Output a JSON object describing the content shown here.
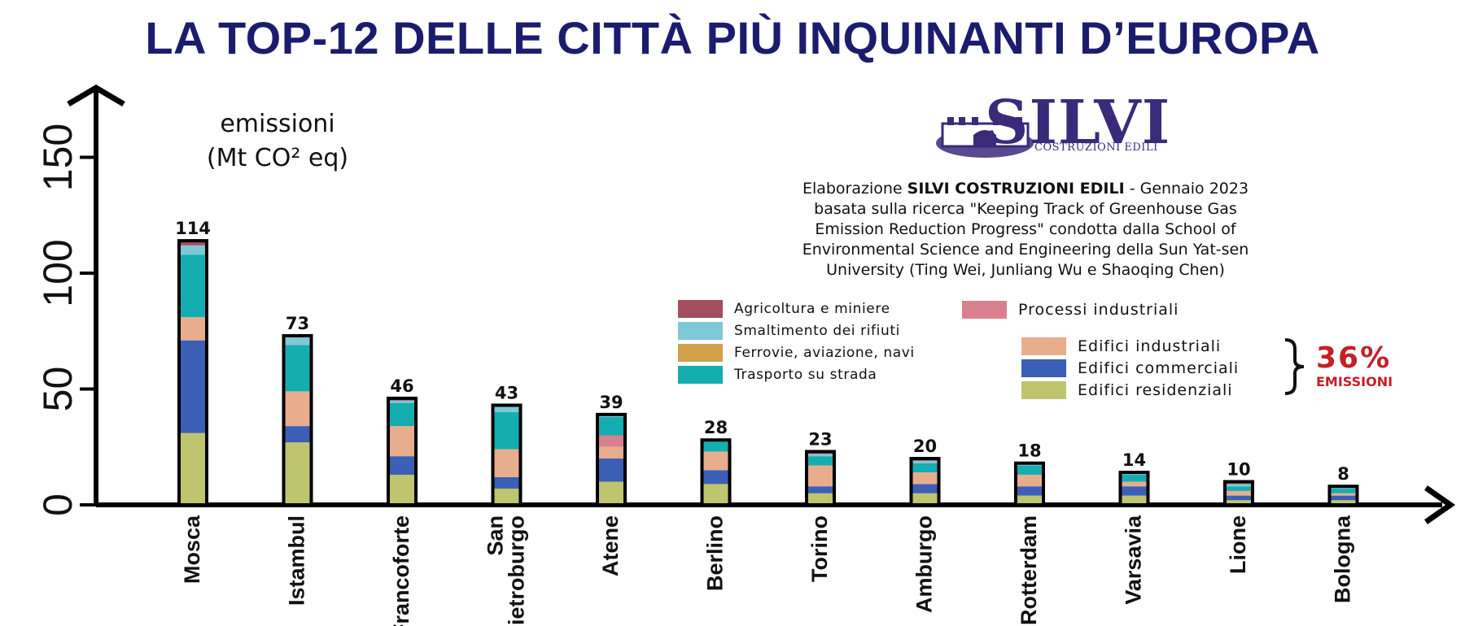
{
  "title": "LA TOP-12 DELLE CITTÀ PIÙ INQUINANTI D’EUROPA",
  "logo": {
    "word": "SILVI",
    "sub": "COSTRUZIONI EDILI"
  },
  "credit": {
    "line1_pre": "Elaborazione ",
    "line1_bold": "SILVI COSTRUZIONI EDILI",
    "line1_post": " - Gennaio 2023",
    "line2": "basata sulla ricerca \"Keeping Track of Greenhouse Gas",
    "line3": "Emission Reduction Progress\" condotta dalla School of",
    "line4": "Environmental Science and Engineering della Sun Yat-sen",
    "line5": "University (Ting Wei, Junliang Wu e Shaoqing Chen)"
  },
  "highlight": {
    "value": "36%",
    "label": "EMISSIONI"
  },
  "chart_data": {
    "type": "bar",
    "stacked": true,
    "ylabel_lines": [
      "emissioni",
      "(Mt CO² eq)"
    ],
    "ylim": [
      0,
      150
    ],
    "yticks": [
      0,
      50,
      100,
      150
    ],
    "grid": false,
    "categories": [
      "Mosca",
      "Istambul",
      "Francoforte",
      "San Pietroburgo",
      "Atene",
      "Berlino",
      "Torino",
      "Amburgo",
      "Rotterdam",
      "Varsavia",
      "Lione",
      "Bologna"
    ],
    "category_lines": [
      [
        "Mosca"
      ],
      [
        "Istambul"
      ],
      [
        "Francoforte"
      ],
      [
        "San",
        "Pietroburgo"
      ],
      [
        "Atene"
      ],
      [
        "Berlino"
      ],
      [
        "Torino"
      ],
      [
        "Amburgo"
      ],
      [
        "Rotterdam"
      ],
      [
        "Varsavia"
      ],
      [
        "Lione"
      ],
      [
        "Bologna"
      ]
    ],
    "totals": [
      114,
      73,
      46,
      43,
      39,
      28,
      23,
      20,
      18,
      14,
      10,
      8
    ],
    "series": [
      {
        "name": "Edifici residenziali",
        "color": "#bfc46f",
        "values": [
          31,
          27,
          13,
          7,
          10,
          9,
          5,
          5,
          4,
          4,
          2,
          2
        ]
      },
      {
        "name": "Edifici commerciali",
        "color": "#3b5fb5",
        "values": [
          40,
          7,
          8,
          5,
          10,
          6,
          3,
          4,
          4,
          4,
          2,
          2
        ]
      },
      {
        "name": "Edifici industriali",
        "color": "#e8ad8d",
        "values": [
          10,
          15,
          13,
          12,
          5,
          8,
          9,
          5,
          5,
          2,
          2,
          1
        ]
      },
      {
        "name": "Processi industriali",
        "color": "#d9808e",
        "values": [
          0,
          0,
          0,
          0,
          5,
          0,
          0,
          0,
          0,
          0,
          0,
          0
        ]
      },
      {
        "name": "Ferrovie, aviazione, navi",
        "color": "#d1a04a",
        "values": [
          0,
          0,
          0,
          0,
          0,
          0,
          0,
          0,
          0,
          0,
          0,
          0
        ]
      },
      {
        "name": "Trasporto su strada",
        "color": "#14aeb0",
        "values": [
          27,
          20,
          10,
          16,
          8,
          5,
          4,
          4,
          4,
          3,
          2,
          2
        ]
      },
      {
        "name": "Smaltimento dei rifiuti",
        "color": "#7fc8d6",
        "values": [
          4,
          4,
          1,
          3,
          1,
          0,
          1,
          1,
          1,
          1,
          1,
          1
        ]
      },
      {
        "name": "Agricoltura e miniere",
        "color": "#a34e5e",
        "values": [
          2,
          0,
          1,
          0,
          0,
          0,
          1,
          1,
          0,
          0,
          1,
          0
        ]
      }
    ],
    "legend": {
      "left": [
        "Agricoltura e miniere",
        "Smaltimento dei rifiuti",
        "Ferrovie, aviazione, navi",
        "Trasporto su strada"
      ],
      "right_top": [
        "Processi industriali"
      ],
      "buildings": [
        "Edifici industriali",
        "Edifici commerciali",
        "Edifici residenziali"
      ]
    }
  }
}
